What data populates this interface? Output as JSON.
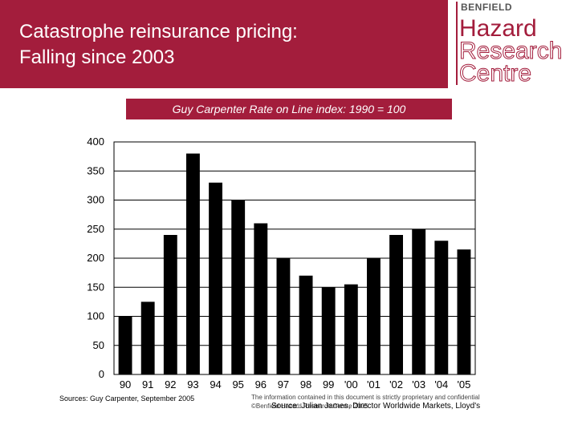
{
  "header": {
    "title_line1": "Catastrophe reinsurance pricing:",
    "title_line2": "Falling since 2003",
    "accent_color": "#a31d3c"
  },
  "logo": {
    "brand": "BENFIELD",
    "words": [
      "Hazard",
      "Research",
      "Centre"
    ]
  },
  "chart_data": {
    "type": "bar",
    "title": "Guy Carpenter Rate on Line index: 1990 = 100",
    "categories": [
      "90",
      "91",
      "92",
      "93",
      "94",
      "95",
      "96",
      "97",
      "98",
      "99",
      "'00",
      "'01",
      "'02",
      "'03",
      "'04",
      "'05"
    ],
    "values": [
      100,
      125,
      240,
      380,
      330,
      300,
      260,
      200,
      170,
      150,
      155,
      200,
      240,
      250,
      230,
      215
    ],
    "ylim": [
      0,
      400
    ],
    "yticks": [
      0,
      50,
      100,
      150,
      200,
      250,
      300,
      350,
      400
    ],
    "grid": true,
    "bar_color": "#000000"
  },
  "footer": {
    "sources": "Sources: Guy Carpenter, September 2005",
    "confidential_line1": "The information contained in this document is strictly proprietary and confidential",
    "confidential_line2": "©Benfield Hazard Research Centre 2005",
    "source_credit": "Source: Julian James, Director Worldwide Markets, Lloyd's"
  }
}
